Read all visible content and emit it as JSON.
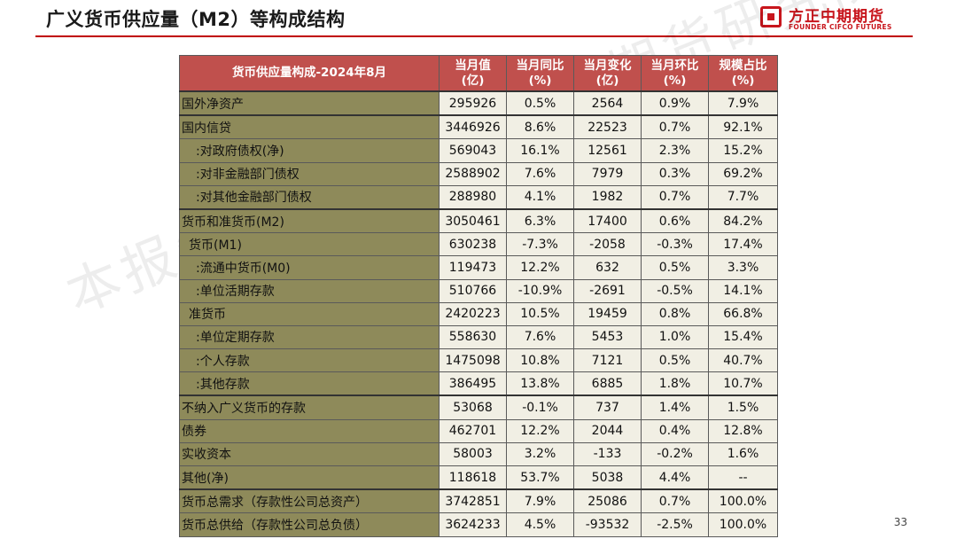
{
  "slide": {
    "title": "广义货币供应量（M2）等构成结构",
    "page_number": "33",
    "watermark": "本报告版权归方正中期期货研究院所有"
  },
  "logo": {
    "icon": "founder-logo-icon",
    "cn": "方正中期期货",
    "en": "FOUNDER CIFCO FUTURES",
    "color": "#c8161d"
  },
  "table": {
    "headers": [
      {
        "l1": "货币供应量构成-2024年8月",
        "l2": ""
      },
      {
        "l1": "当月值",
        "l2": "(亿)"
      },
      {
        "l1": "当月同比",
        "l2": "(%)"
      },
      {
        "l1": "当月变化",
        "l2": "(亿)"
      },
      {
        "l1": "当月环比",
        "l2": "(%)"
      },
      {
        "l1": "规模占比",
        "l2": "(%)"
      }
    ],
    "groups": [
      [
        [
          "国外净资产",
          "295926",
          "0.5%",
          "2564",
          "0.9%",
          "7.9%"
        ]
      ],
      [
        [
          "国内信贷",
          "3446926",
          "8.6%",
          "22523",
          "0.7%",
          "92.1%"
        ],
        [
          ":对政府债权(净)",
          "569043",
          "16.1%",
          "12561",
          "2.3%",
          "15.2%"
        ],
        [
          ":对非金融部门债权",
          "2588902",
          "7.6%",
          "7979",
          "0.3%",
          "69.2%"
        ],
        [
          ":对其他金融部门债权",
          "288980",
          "4.1%",
          "1982",
          "0.7%",
          "7.7%"
        ]
      ],
      [
        [
          "货币和准货币(M2)",
          "3050461",
          "6.3%",
          "17400",
          "0.6%",
          "84.2%"
        ],
        [
          "货币(M1)",
          "630238",
          "-7.3%",
          "-2058",
          "-0.3%",
          "17.4%"
        ],
        [
          ":流通中货币(M0)",
          "119473",
          "12.2%",
          "632",
          "0.5%",
          "3.3%"
        ],
        [
          ":单位活期存款",
          "510766",
          "-10.9%",
          "-2691",
          "-0.5%",
          "14.1%"
        ],
        [
          "准货币",
          "2420223",
          "10.5%",
          "19459",
          "0.8%",
          "66.8%"
        ],
        [
          ":单位定期存款",
          "558630",
          "7.6%",
          "5453",
          "1.0%",
          "15.4%"
        ],
        [
          ":个人存款",
          "1475098",
          "10.8%",
          "7121",
          "0.5%",
          "40.7%"
        ],
        [
          ":其他存款",
          "386495",
          "13.8%",
          "6885",
          "1.8%",
          "10.7%"
        ]
      ],
      [
        [
          "不纳入广义货币的存款",
          "53068",
          "-0.1%",
          "737",
          "1.4%",
          "1.5%"
        ],
        [
          "债券",
          "462701",
          "12.2%",
          "2044",
          "0.4%",
          "12.8%"
        ],
        [
          "实收资本",
          "58003",
          "3.2%",
          "-133",
          "-0.2%",
          "1.6%"
        ],
        [
          "其他(净)",
          "118618",
          "53.7%",
          "5038",
          "4.4%",
          "--"
        ]
      ],
      [
        [
          "货币总需求（存款性公司总资产）",
          "3742851",
          "7.9%",
          "25086",
          "0.7%",
          "100.0%"
        ],
        [
          "货币总供给（存款性公司总负债）",
          "3624233",
          "4.5%",
          "-93532",
          "-2.5%",
          "100.0%"
        ]
      ]
    ],
    "indents": {
      "货币(M1)": 1,
      "准货币": 1,
      ":对政府债权(净)": 2,
      ":对非金融部门债权": 2,
      ":对其他金融部门债权": 2,
      ":流通中货币(M0)": 2,
      ":单位活期存款": 2,
      ":单位定期存款": 2,
      ":个人存款": 2,
      ":其他存款": 2
    },
    "header_color": "#c0504d",
    "name_col_color": "#8e8a5a",
    "value_bg_color": "#f1efe4"
  }
}
